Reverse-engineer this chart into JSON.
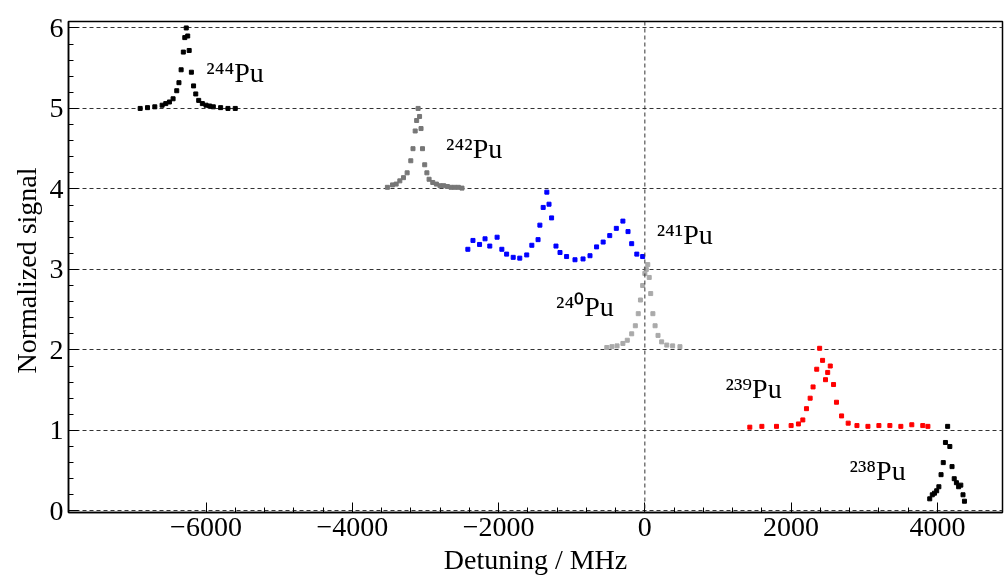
{
  "chart_data": {
    "type": "scatter",
    "xlabel": "Detuning / MHz",
    "ylabel": "Normalized  signal",
    "xlim": [
      -7880,
      4890
    ],
    "ylim": [
      -0.02,
      6.08
    ],
    "xticks": [
      -6000,
      -4000,
      -2000,
      0,
      2000,
      4000
    ],
    "yticks": [
      0,
      1,
      2,
      3,
      4,
      5,
      6
    ],
    "grid": "y",
    "marker": "square",
    "ref_lines": [
      {
        "axis": "x",
        "value": 0,
        "line_style": "dashed",
        "color": "#333333"
      }
    ],
    "series": [
      {
        "name": "²⁴⁴Pu",
        "color": "#000000",
        "x": [
          -6900,
          -6800,
          -6700,
          -6600,
          -6550,
          -6500,
          -6450,
          -6400,
          -6370,
          -6340,
          -6310,
          -6290,
          -6270,
          -6250,
          -6230,
          -6200,
          -6170,
          -6140,
          -6100,
          -6050,
          -6000,
          -5950,
          -5900,
          -5800,
          -5700,
          -5600
        ],
        "values": [
          5.0,
          5.01,
          5.02,
          5.04,
          5.06,
          5.08,
          5.12,
          5.22,
          5.32,
          5.48,
          5.7,
          5.88,
          6.0,
          5.9,
          5.72,
          5.45,
          5.28,
          5.18,
          5.1,
          5.06,
          5.04,
          5.03,
          5.02,
          5.01,
          5.0,
          5.0
        ]
      },
      {
        "name": "²⁴²Pu",
        "color": "#777777",
        "x": [
          -3520,
          -3450,
          -3400,
          -3350,
          -3300,
          -3250,
          -3200,
          -3170,
          -3140,
          -3120,
          -3100,
          -3080,
          -3060,
          -3040,
          -3010,
          -2980,
          -2950,
          -2900,
          -2850,
          -2800,
          -2750,
          -2700,
          -2650,
          -2600,
          -2550,
          -2500
        ],
        "values": [
          4.02,
          4.05,
          4.06,
          4.1,
          4.14,
          4.2,
          4.35,
          4.5,
          4.72,
          4.85,
          5.0,
          4.9,
          4.75,
          4.5,
          4.3,
          4.2,
          4.12,
          4.08,
          4.06,
          4.04,
          4.04,
          4.03,
          4.02,
          4.02,
          4.02,
          4.01
        ]
      },
      {
        "name": "²⁴¹Pu",
        "color": "#0000ff",
        "x": [
          -2420,
          -2350,
          -2260,
          -2185,
          -2120,
          -2020,
          -1955,
          -1890,
          -1800,
          -1710,
          -1615,
          -1545,
          -1460,
          -1435,
          -1390,
          -1340,
          -1310,
          -1275,
          -1215,
          -1160,
          -1070,
          -955,
          -845,
          -750,
          -660,
          -570,
          -480,
          -390,
          -300,
          -230,
          -180,
          -110,
          -30
        ],
        "values": [
          3.25,
          3.36,
          3.31,
          3.38,
          3.29,
          3.4,
          3.25,
          3.19,
          3.15,
          3.14,
          3.18,
          3.3,
          3.37,
          3.55,
          3.77,
          3.96,
          3.81,
          3.64,
          3.29,
          3.21,
          3.16,
          3.12,
          3.13,
          3.17,
          3.28,
          3.34,
          3.42,
          3.51,
          3.6,
          3.47,
          3.32,
          3.19,
          3.16
        ]
      },
      {
        "name": "²⁴⁰Pu",
        "color": "#aaaaaa",
        "x": [
          -520,
          -450,
          -380,
          -300,
          -240,
          -180,
          -130,
          -90,
          -60,
          -30,
          0,
          20,
          40,
          60,
          80,
          110,
          140,
          180,
          230,
          300,
          380,
          480
        ],
        "values": [
          2.03,
          2.04,
          2.05,
          2.08,
          2.12,
          2.2,
          2.3,
          2.45,
          2.62,
          2.8,
          2.95,
          3.0,
          3.06,
          2.9,
          2.7,
          2.45,
          2.3,
          2.18,
          2.1,
          2.06,
          2.05,
          2.04
        ]
      },
      {
        "name": "²³⁹Pu",
        "color": "#ff0000",
        "x": [
          1435,
          1600,
          1800,
          2000,
          2100,
          2160,
          2210,
          2260,
          2300,
          2350,
          2390,
          2430,
          2470,
          2500,
          2535,
          2580,
          2620,
          2690,
          2780,
          2900,
          3050,
          3200,
          3350,
          3500,
          3650,
          3800,
          3870
        ],
        "values": [
          1.04,
          1.05,
          1.05,
          1.06,
          1.08,
          1.13,
          1.27,
          1.4,
          1.54,
          1.76,
          2.02,
          1.87,
          1.63,
          1.72,
          1.8,
          1.57,
          1.35,
          1.18,
          1.09,
          1.06,
          1.05,
          1.06,
          1.06,
          1.05,
          1.07,
          1.06,
          1.05
        ]
      },
      {
        "name": "²³⁸Pu",
        "color": "#000000",
        "x": [
          3895,
          3930,
          3960,
          3990,
          4020,
          4050,
          4080,
          4110,
          4140,
          4170,
          4200,
          4230,
          4260,
          4290,
          4320,
          4350,
          4370
        ],
        "values": [
          0.15,
          0.2,
          0.22,
          0.25,
          0.3,
          0.45,
          0.6,
          0.85,
          1.05,
          0.8,
          0.55,
          0.4,
          0.35,
          0.3,
          0.32,
          0.2,
          0.12
        ]
      }
    ]
  }
}
